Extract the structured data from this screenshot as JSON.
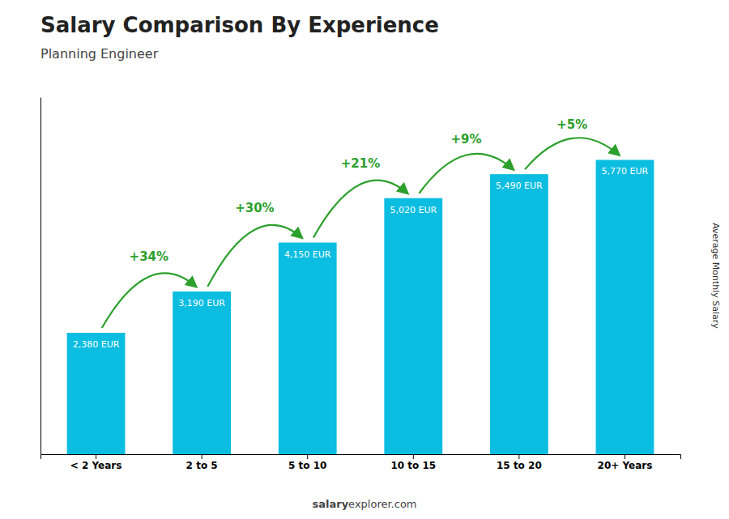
{
  "chart_data": {
    "type": "bar",
    "title": "Salary Comparison By Experience",
    "subtitle": "Planning Engineer",
    "ylabel": "Average Monthly Salary",
    "categories": [
      "< 2 Years",
      "2 to 5",
      "5 to 10",
      "10 to 15",
      "15 to 20",
      "20+ Years"
    ],
    "values": [
      2380,
      3190,
      4150,
      5020,
      5490,
      5770
    ],
    "value_labels": [
      "2,380 EUR",
      "3,190 EUR",
      "4,150 EUR",
      "5,020 EUR",
      "5,490 EUR",
      "5,770 EUR"
    ],
    "data_labels": true,
    "annotations": [
      "+34%",
      "+30%",
      "+21%",
      "+9%",
      "+5%"
    ],
    "footer": [
      "salary",
      "explorer.com"
    ],
    "color": "#0bbde0",
    "ylim": [
      0,
      7000
    ],
    "tick_labels": "x",
    "grid": false
  }
}
